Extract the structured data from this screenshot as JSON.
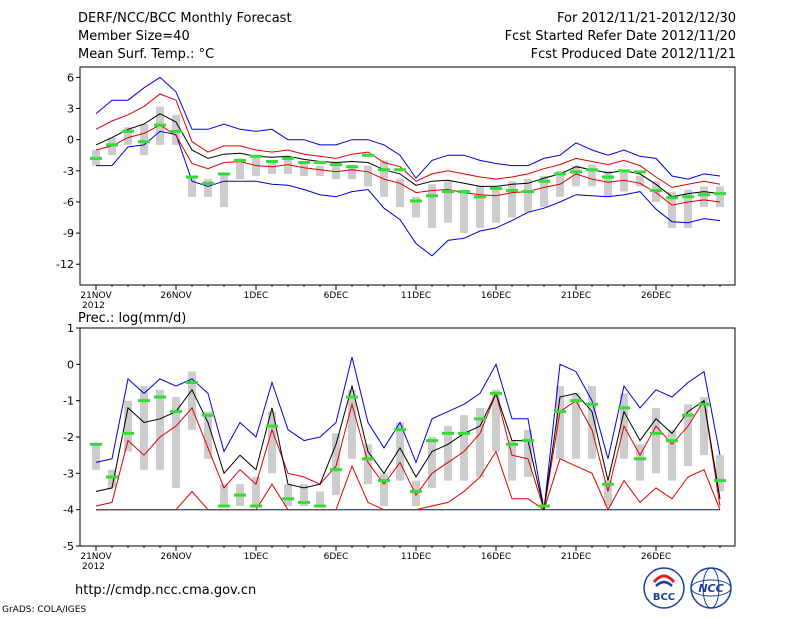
{
  "header": {
    "title": "DERF/NCC/BCC Monthly Forecast",
    "member_size": "Member Size=40",
    "variable_temp": "Mean Surf. Temp.: °C",
    "forecast_period": "For 2012/11/21-2012/12/30",
    "fcst_started": "Fcst Started Refer Date 2012/11/20",
    "fcst_produced": "Fcst Produced Date 2012/11/21"
  },
  "footer": {
    "url": "http://cmdp.ncc.cma.gov.cn",
    "grads": "GrADS: COLA/IGES",
    "logo_bcc_text": "BCC",
    "logo_ncc_text": "NCC"
  },
  "colors": {
    "box": "#cccccc",
    "median": "#33dd33",
    "mean": "#000000",
    "envelope": "#0000dd",
    "spread": "#dd0000"
  },
  "chart_data": [
    {
      "type": "box-plume",
      "title": "Mean Surf. Temp.: °C",
      "xlabel": "",
      "ylabel": "°C",
      "ylim": [
        -14,
        7
      ],
      "yticks": [
        6,
        3,
        0,
        -3,
        -6,
        -9,
        -12
      ],
      "xtick_labels": [
        {
          "day": 1,
          "label": "21NOV"
        },
        {
          "day": 6,
          "label": "26NOV"
        },
        {
          "day": 11,
          "label": "1DEC"
        },
        {
          "day": 16,
          "label": "6DEC"
        },
        {
          "day": 21,
          "label": "11DEC"
        },
        {
          "day": 26,
          "label": "16DEC"
        },
        {
          "day": 31,
          "label": "21DEC"
        },
        {
          "day": 36,
          "label": "26DEC"
        }
      ],
      "year_label": "2012",
      "days": [
        1,
        2,
        3,
        4,
        5,
        6,
        7,
        8,
        9,
        10,
        11,
        12,
        13,
        14,
        15,
        16,
        17,
        18,
        19,
        20,
        21,
        22,
        23,
        24,
        25,
        26,
        27,
        28,
        29,
        30,
        31,
        32,
        33,
        34,
        35,
        36,
        37,
        38,
        39,
        40
      ],
      "ens_max": [
        2.5,
        3.8,
        3.8,
        5.0,
        6.0,
        4.6,
        1.0,
        1.0,
        1.5,
        1.0,
        0.8,
        1.0,
        0.0,
        0.0,
        -0.5,
        -0.5,
        0.0,
        0.0,
        -0.5,
        -1.5,
        -3.7,
        -2.0,
        -1.5,
        -1.5,
        -2.0,
        -2.3,
        -2.5,
        -2.5,
        -1.8,
        -1.5,
        -0.3,
        -1.0,
        -1.5,
        -1.0,
        -1.6,
        -1.8,
        -3.5,
        -3.8,
        -3.3,
        -3.5
      ],
      "spread_hi": [
        1.0,
        1.8,
        2.4,
        3.2,
        4.4,
        3.8,
        -0.2,
        -1.2,
        -0.6,
        -0.6,
        -1.0,
        -1.2,
        -1.0,
        -1.4,
        -1.6,
        -1.8,
        -1.4,
        -1.2,
        -2.2,
        -2.6,
        -4.0,
        -3.3,
        -3.0,
        -3.3,
        -3.6,
        -3.8,
        -3.6,
        -3.3,
        -2.8,
        -2.4,
        -1.8,
        -2.1,
        -2.4,
        -2.0,
        -2.5,
        -3.6,
        -4.6,
        -4.3,
        -4.0,
        -4.3
      ],
      "ens_mean": [
        -0.5,
        0.2,
        1.0,
        1.5,
        2.5,
        1.7,
        -1.0,
        -1.8,
        -1.4,
        -1.3,
        -1.6,
        -1.7,
        -1.6,
        -1.9,
        -2.1,
        -2.2,
        -2.1,
        -2.2,
        -2.9,
        -3.3,
        -4.4,
        -4.0,
        -3.9,
        -4.2,
        -4.5,
        -4.5,
        -4.3,
        -4.2,
        -3.7,
        -3.3,
        -2.6,
        -2.9,
        -3.2,
        -3.0,
        -3.3,
        -4.3,
        -5.5,
        -5.2,
        -5.0,
        -5.2
      ],
      "spread_lo": [
        -1.0,
        -0.6,
        0.2,
        0.6,
        1.4,
        0.4,
        -2.3,
        -2.8,
        -2.2,
        -2.1,
        -2.5,
        -2.6,
        -2.4,
        -2.7,
        -2.9,
        -3.1,
        -2.9,
        -3.1,
        -3.8,
        -4.2,
        -5.1,
        -4.9,
        -4.8,
        -5.1,
        -5.3,
        -5.4,
        -5.1,
        -5.0,
        -4.6,
        -4.3,
        -3.3,
        -3.8,
        -4.1,
        -3.9,
        -4.2,
        -5.1,
        -6.3,
        -6.0,
        -5.8,
        -6.0
      ],
      "ens_min": [
        -2.5,
        -2.5,
        -0.7,
        -0.5,
        0.8,
        0.5,
        -4.0,
        -4.5,
        -4.0,
        -4.0,
        -4.0,
        -4.3,
        -4.4,
        -4.8,
        -5.3,
        -5.5,
        -5.0,
        -4.8,
        -6.6,
        -7.7,
        -10.0,
        -11.2,
        -9.7,
        -9.5,
        -8.8,
        -8.5,
        -7.8,
        -7.0,
        -6.6,
        -6.0,
        -5.3,
        -5.4,
        -5.5,
        -5.3,
        -5.0,
        -6.7,
        -7.9,
        -8.0,
        -7.6,
        -7.8
      ],
      "box_hi": [
        -1.0,
        0.2,
        1.2,
        1.5,
        3.2,
        2.4,
        -3.5,
        -3.8,
        -3.2,
        -1.8,
        -1.5,
        -2.0,
        -1.8,
        -2.2,
        -2.5,
        -2.5,
        -2.5,
        -2.5,
        -2.0,
        -3.8,
        -5.5,
        -4.3,
        -4.0,
        -5.0,
        -4.5,
        -4.6,
        -4.0,
        -3.8,
        -3.5,
        -3.0,
        -2.5,
        -2.4,
        -3.0,
        -3.0,
        -3.5,
        -4.0,
        -5.0,
        -4.8,
        -4.5,
        -4.5
      ],
      "box_lo": [
        -2.5,
        -1.5,
        -0.5,
        -1.5,
        -0.5,
        -0.5,
        -5.5,
        -5.5,
        -6.5,
        -3.8,
        -3.5,
        -3.3,
        -3.3,
        -3.5,
        -3.5,
        -3.8,
        -3.8,
        -4.5,
        -5.5,
        -6.5,
        -7.5,
        -8.5,
        -8.0,
        -9.0,
        -8.5,
        -8.0,
        -7.5,
        -7.0,
        -6.5,
        -5.5,
        -4.5,
        -4.5,
        -5.5,
        -5.0,
        -4.5,
        -6.0,
        -8.5,
        -8.5,
        -6.5,
        -6.5
      ],
      "median": [
        -1.8,
        -0.5,
        0.8,
        -0.2,
        1.4,
        0.8,
        -3.6,
        -4.2,
        -3.3,
        -2.0,
        -1.6,
        -2.1,
        -1.8,
        -2.2,
        -2.2,
        -2.4,
        -2.6,
        -1.5,
        -2.9,
        -2.9,
        -5.9,
        -5.4,
        -5.0,
        -5.0,
        -5.5,
        -4.7,
        -4.9,
        -5.0,
        -4.0,
        -3.3,
        -3.1,
        -2.9,
        -3.6,
        -3.0,
        -3.1,
        -4.9,
        -5.6,
        -5.5,
        -5.3,
        -5.2
      ]
    },
    {
      "type": "box-plume",
      "title": "Prec.: log(mm/d)",
      "xlabel": "",
      "ylabel": "log(mm/d)",
      "ylim": [
        -5,
        1
      ],
      "yticks": [
        1,
        0,
        -1,
        -2,
        -3,
        -4,
        -5
      ],
      "xtick_labels": [
        {
          "day": 1,
          "label": "21NOV"
        },
        {
          "day": 6,
          "label": "26NOV"
        },
        {
          "day": 11,
          "label": "1DEC"
        },
        {
          "day": 16,
          "label": "6DEC"
        },
        {
          "day": 21,
          "label": "11DEC"
        },
        {
          "day": 26,
          "label": "16DEC"
        },
        {
          "day": 31,
          "label": "21DEC"
        },
        {
          "day": 36,
          "label": "26DEC"
        }
      ],
      "year_label": "2012",
      "days": [
        1,
        2,
        3,
        4,
        5,
        6,
        7,
        8,
        9,
        10,
        11,
        12,
        13,
        14,
        15,
        16,
        17,
        18,
        19,
        20,
        21,
        22,
        23,
        24,
        25,
        26,
        27,
        28,
        29,
        30,
        31,
        32,
        33,
        34,
        35,
        36,
        37,
        38,
        39,
        40
      ],
      "ens_max": [
        -2.7,
        -2.6,
        -0.4,
        -0.8,
        -0.4,
        -0.6,
        -0.4,
        -0.8,
        -2.4,
        -1.6,
        -2.0,
        -0.5,
        -1.8,
        -2.1,
        -2.0,
        -1.6,
        0.2,
        -1.6,
        -2.3,
        -1.6,
        -2.7,
        -1.5,
        -1.3,
        -1.1,
        -0.8,
        0.0,
        -1.5,
        -1.5,
        -4.0,
        0.0,
        -0.2,
        -1.0,
        -2.6,
        -0.6,
        -1.2,
        -0.7,
        -0.9,
        -0.5,
        -0.2,
        -2.5
      ],
      "spread_hi": [
        -3.9,
        -3.8,
        -2.1,
        -2.5,
        -2.0,
        -1.7,
        -1.2,
        -2.3,
        -3.4,
        -2.9,
        -3.3,
        -1.8,
        -3.0,
        -3.1,
        -3.3,
        -2.8,
        -1.1,
        -2.7,
        -3.3,
        -2.7,
        -3.6,
        -3.0,
        -2.7,
        -2.4,
        -1.9,
        -0.8,
        -2.5,
        -2.6,
        -4.0,
        -1.3,
        -1.0,
        -1.8,
        -3.5,
        -1.7,
        -2.5,
        -1.7,
        -2.2,
        -1.7,
        -1.0,
        -3.9
      ],
      "ens_mean": [
        -3.5,
        -3.4,
        -1.2,
        -1.6,
        -1.5,
        -1.3,
        -0.7,
        -1.6,
        -3.0,
        -2.5,
        -2.9,
        -1.2,
        -3.3,
        -3.4,
        -3.3,
        -2.2,
        -0.6,
        -2.4,
        -3.0,
        -2.3,
        -3.1,
        -2.4,
        -2.2,
        -1.9,
        -1.7,
        -0.8,
        -2.1,
        -2.1,
        -4.0,
        -0.9,
        -0.8,
        -1.3,
        -3.2,
        -1.3,
        -2.1,
        -1.5,
        -1.9,
        -1.3,
        -1.0,
        -3.7
      ],
      "spread_lo": [
        -4.0,
        -4.0,
        -4.0,
        -4.0,
        -4.0,
        -4.0,
        -3.5,
        -4.0,
        -4.0,
        -4.0,
        -4.0,
        -3.3,
        -4.0,
        -4.0,
        -4.0,
        -4.0,
        -2.8,
        -3.8,
        -4.0,
        -4.0,
        -4.0,
        -3.9,
        -3.8,
        -3.5,
        -3.1,
        -2.4,
        -3.7,
        -3.7,
        -4.0,
        -2.6,
        -2.8,
        -3.0,
        -4.0,
        -3.2,
        -3.8,
        -3.4,
        -3.7,
        -3.1,
        -2.9,
        -4.0
      ],
      "ens_min": [
        -4.0,
        -4.0,
        -4.0,
        -4.0,
        -4.0,
        -4.0,
        -4.0,
        -4.0,
        -4.0,
        -4.0,
        -4.0,
        -4.0,
        -4.0,
        -4.0,
        -4.0,
        -4.0,
        -4.0,
        -4.0,
        -4.0,
        -4.0,
        -4.0,
        -4.0,
        -4.0,
        -4.0,
        -4.0,
        -4.0,
        -4.0,
        -4.0,
        -4.0,
        -4.0,
        -4.0,
        -4.0,
        -4.0,
        -4.0,
        -4.0,
        -4.0,
        -4.0,
        -4.0,
        -4.0,
        -4.0
      ],
      "box_hi": [
        -2.2,
        -2.9,
        -1.0,
        -0.6,
        -0.7,
        -0.9,
        -0.2,
        -1.3,
        -3.3,
        -3.3,
        -3.1,
        -1.3,
        -3.3,
        -3.3,
        -3.5,
        -1.9,
        -0.7,
        -2.2,
        -3.0,
        -1.6,
        -3.2,
        -2.0,
        -1.7,
        -1.4,
        -1.2,
        -0.7,
        -2.1,
        -1.8,
        -3.9,
        -0.6,
        -0.8,
        -0.6,
        -3.2,
        -0.8,
        -2.2,
        -1.2,
        -1.8,
        -1.1,
        -0.9,
        -2.5
      ],
      "box_lo": [
        -2.9,
        -3.4,
        -2.4,
        -2.9,
        -2.9,
        -3.4,
        -1.8,
        -2.6,
        -3.9,
        -3.9,
        -3.9,
        -3.0,
        -3.9,
        -3.9,
        -3.9,
        -3.6,
        -2.6,
        -3.3,
        -3.9,
        -3.2,
        -3.9,
        -3.4,
        -3.2,
        -3.2,
        -3.1,
        -2.4,
        -3.2,
        -3.1,
        -3.9,
        -2.6,
        -2.6,
        -2.6,
        -3.9,
        -2.6,
        -3.2,
        -3.0,
        -3.2,
        -2.8,
        -2.5,
        -3.5
      ],
      "median": [
        -2.2,
        -3.1,
        -1.9,
        -1.0,
        -0.9,
        -1.3,
        -0.5,
        -1.4,
        -3.9,
        -3.6,
        -3.9,
        -1.7,
        -3.7,
        -3.8,
        -3.9,
        -2.9,
        -0.9,
        -2.6,
        -3.2,
        -1.8,
        -3.5,
        -2.1,
        -1.9,
        -1.9,
        -1.5,
        -0.8,
        -2.2,
        -2.1,
        -3.9,
        -1.3,
        -1.0,
        -1.1,
        -3.3,
        -1.2,
        -2.6,
        -1.9,
        -2.1,
        -1.4,
        -1.1,
        -3.2
      ]
    }
  ]
}
